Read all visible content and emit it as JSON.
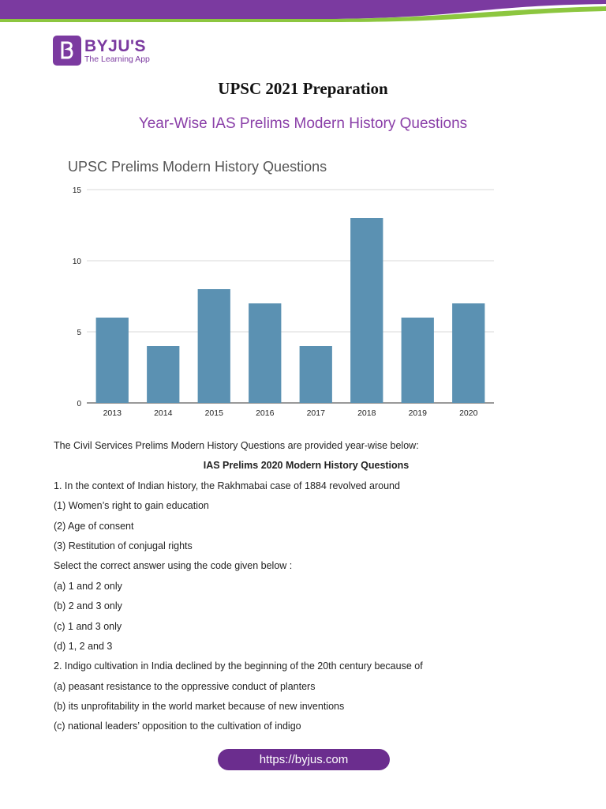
{
  "brand": {
    "name": "BYJU'S",
    "tagline": "The Learning App",
    "colors": {
      "purple": "#7b3aa0",
      "green": "#8cc63f",
      "bar": "#5b91b2"
    }
  },
  "title": "UPSC 2021 Preparation",
  "subtitle": "Year-Wise IAS Prelims Modern History Questions",
  "chart_data": {
    "type": "bar",
    "title": "UPSC Prelims Modern History Questions",
    "categories": [
      "2013",
      "2014",
      "2015",
      "2016",
      "2017",
      "2018",
      "2019",
      "2020"
    ],
    "values": [
      6,
      4,
      8,
      7,
      4,
      13,
      6,
      7
    ],
    "yticks": [
      0,
      5,
      10,
      15
    ],
    "ylim": [
      0,
      15
    ],
    "xlabel": "",
    "ylabel": "",
    "grid": true,
    "legend": "none"
  },
  "content": {
    "intro": "The Civil Services Prelims Modern History Questions are provided year-wise below:",
    "section_heading": "IAS Prelims 2020 Modern History Questions",
    "lines": [
      "1. In the context of Indian history, the Rakhmabai case of 1884 revolved around",
      "(1) Women’s right to gain education",
      "(2) Age of consent",
      "(3) Restitution of conjugal rights",
      "Select the correct answer using the code given below :",
      "(a) 1 and 2 only",
      "(b) 2 and 3 only",
      "(c) 1 and 3 only",
      "(d) 1, 2 and 3",
      "2. Indigo cultivation in India declined by the beginning of the 20th century because of",
      "(a) peasant resistance to the oppressive conduct of planters",
      "(b) its unprofitability in the world market because of new inventions",
      "(c) national leaders’ opposition to the cultivation of indigo"
    ]
  },
  "footer": {
    "url": "https://byjus.com"
  }
}
